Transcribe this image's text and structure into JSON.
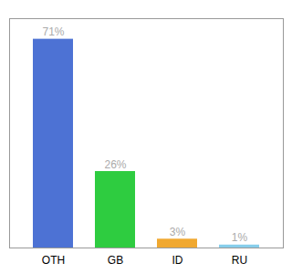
{
  "chart_data": {
    "type": "bar",
    "categories": [
      "OTH",
      "GB",
      "ID",
      "RU"
    ],
    "values": [
      71,
      26,
      3,
      1
    ],
    "value_labels": [
      "71%",
      "26%",
      "3%",
      "1%"
    ],
    "colors": [
      "#4d72d4",
      "#2ecc40",
      "#f0a830",
      "#87ceeb"
    ],
    "ylim": [
      0,
      78
    ],
    "data_labels": true,
    "tick_labels": "x"
  }
}
